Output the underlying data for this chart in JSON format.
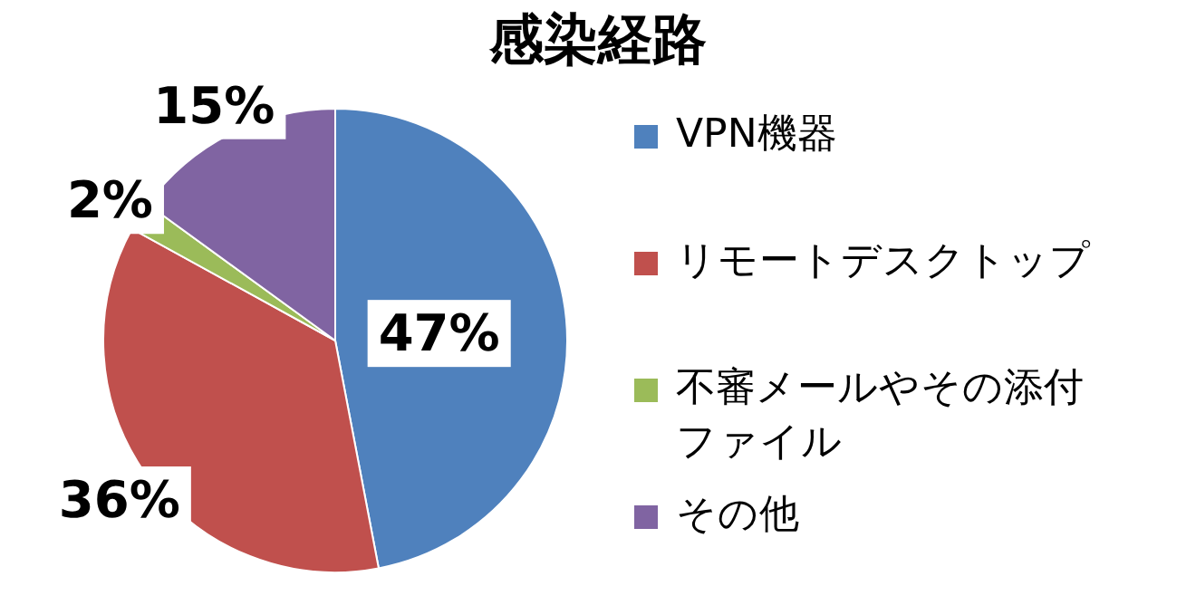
{
  "chart_data": {
    "type": "pie",
    "title": "感染経路",
    "categories": [
      "VPN機器",
      "リモートデスクトップ",
      "不審メールやその添付ファイル",
      "その他"
    ],
    "values": [
      47,
      36,
      2,
      15
    ],
    "colors": [
      "#4f81bd",
      "#c0504d",
      "#9bbb59",
      "#8064a2"
    ],
    "value_labels": [
      "47%",
      "36%",
      "2%",
      "15%"
    ],
    "legend": "right"
  }
}
